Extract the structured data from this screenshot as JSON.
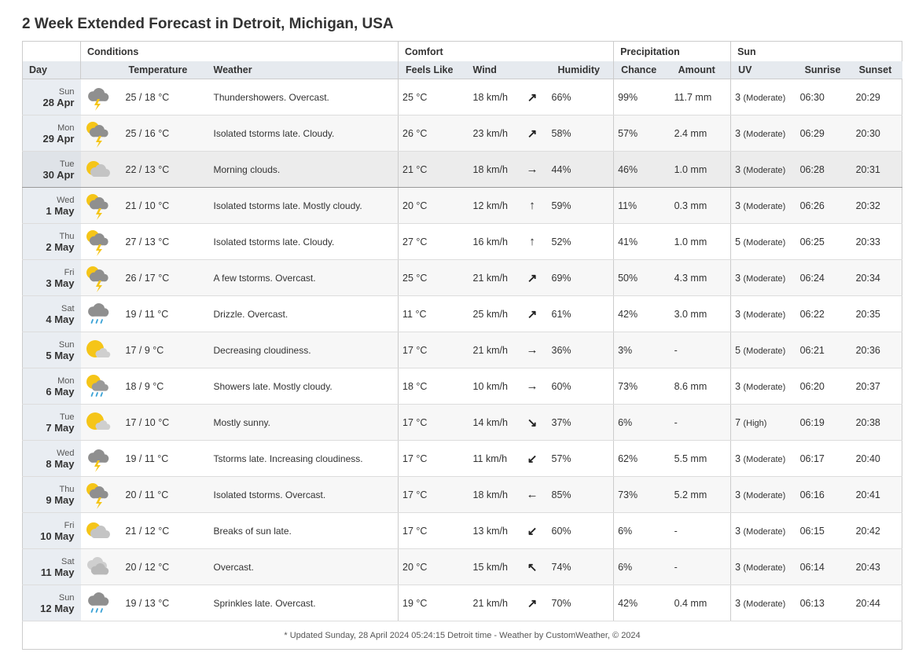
{
  "title": "2 Week Extended Forecast in Detroit, Michigan, USA",
  "groups": {
    "conditions": "Conditions",
    "comfort": "Comfort",
    "precipitation": "Precipitation",
    "sun": "Sun"
  },
  "columns": {
    "day": "Day",
    "temperature": "Temperature",
    "weather": "Weather",
    "feels_like": "Feels Like",
    "wind": "Wind",
    "humidity": "Humidity",
    "chance": "Chance",
    "amount": "Amount",
    "uv": "UV",
    "sunrise": "Sunrise",
    "sunset": "Sunset"
  },
  "rows": [
    {
      "dow": "Sun",
      "date": "28 Apr",
      "icon": "thunderstorm-icon",
      "temp": "25 / 18 °C",
      "weather": "Thundershowers. Overcast.",
      "feels": "25 °C",
      "wind": "18 km/h",
      "wind_dir": "↗",
      "humidity": "66%",
      "chance": "99%",
      "amount": "11.7 mm",
      "uv": "3",
      "uv_label": "(Moderate)",
      "sunrise": "06:30",
      "sunset": "20:29"
    },
    {
      "dow": "Mon",
      "date": "29 Apr",
      "icon": "sun-thunderstorm-icon",
      "temp": "25 / 16 °C",
      "weather": "Isolated tstorms late. Cloudy.",
      "feels": "26 °C",
      "wind": "23 km/h",
      "wind_dir": "↗",
      "humidity": "58%",
      "chance": "57%",
      "amount": "2.4 mm",
      "uv": "3",
      "uv_label": "(Moderate)",
      "sunrise": "06:29",
      "sunset": "20:30"
    },
    {
      "dow": "Tue",
      "date": "30 Apr",
      "icon": "partly-cloudy-icon",
      "temp": "22 / 13 °C",
      "weather": "Morning clouds.",
      "feels": "21 °C",
      "wind": "18 km/h",
      "wind_dir": "→",
      "humidity": "44%",
      "chance": "46%",
      "amount": "1.0 mm",
      "uv": "3",
      "uv_label": "(Moderate)",
      "sunrise": "06:28",
      "sunset": "20:31"
    },
    {
      "dow": "Wed",
      "date": "1 May",
      "icon": "sun-thunderstorm-icon",
      "temp": "21 / 10 °C",
      "weather": "Isolated tstorms late. Mostly cloudy.",
      "feels": "20 °C",
      "wind": "12 km/h",
      "wind_dir": "↑",
      "humidity": "59%",
      "chance": "11%",
      "amount": "0.3 mm",
      "uv": "3",
      "uv_label": "(Moderate)",
      "sunrise": "06:26",
      "sunset": "20:32"
    },
    {
      "dow": "Thu",
      "date": "2 May",
      "icon": "sun-thunderstorm-icon",
      "temp": "27 / 13 °C",
      "weather": "Isolated tstorms late. Cloudy.",
      "feels": "27 °C",
      "wind": "16 km/h",
      "wind_dir": "↑",
      "humidity": "52%",
      "chance": "41%",
      "amount": "1.0 mm",
      "uv": "5",
      "uv_label": "(Moderate)",
      "sunrise": "06:25",
      "sunset": "20:33"
    },
    {
      "dow": "Fri",
      "date": "3 May",
      "icon": "sun-thunderstorm-icon",
      "temp": "26 / 17 °C",
      "weather": "A few tstorms. Overcast.",
      "feels": "25 °C",
      "wind": "21 km/h",
      "wind_dir": "↗",
      "humidity": "69%",
      "chance": "50%",
      "amount": "4.3 mm",
      "uv": "3",
      "uv_label": "(Moderate)",
      "sunrise": "06:24",
      "sunset": "20:34"
    },
    {
      "dow": "Sat",
      "date": "4 May",
      "icon": "drizzle-icon",
      "temp": "19 / 11 °C",
      "weather": "Drizzle. Overcast.",
      "feels": "11 °C",
      "wind": "25 km/h",
      "wind_dir": "↗",
      "humidity": "61%",
      "chance": "42%",
      "amount": "3.0 mm",
      "uv": "3",
      "uv_label": "(Moderate)",
      "sunrise": "06:22",
      "sunset": "20:35"
    },
    {
      "dow": "Sun",
      "date": "5 May",
      "icon": "mostly-sunny-icon",
      "temp": "17 / 9 °C",
      "weather": "Decreasing cloudiness.",
      "feels": "17 °C",
      "wind": "21 km/h",
      "wind_dir": "→",
      "humidity": "36%",
      "chance": "3%",
      "amount": "-",
      "uv": "5",
      "uv_label": "(Moderate)",
      "sunrise": "06:21",
      "sunset": "20:36"
    },
    {
      "dow": "Mon",
      "date": "6 May",
      "icon": "sun-showers-icon",
      "temp": "18 / 9 °C",
      "weather": "Showers late. Mostly cloudy.",
      "feels": "18 °C",
      "wind": "10 km/h",
      "wind_dir": "→",
      "humidity": "60%",
      "chance": "73%",
      "amount": "8.6 mm",
      "uv": "3",
      "uv_label": "(Moderate)",
      "sunrise": "06:20",
      "sunset": "20:37"
    },
    {
      "dow": "Tue",
      "date": "7 May",
      "icon": "mostly-sunny-icon",
      "temp": "17 / 10 °C",
      "weather": "Mostly sunny.",
      "feels": "17 °C",
      "wind": "14 km/h",
      "wind_dir": "↘",
      "humidity": "37%",
      "chance": "6%",
      "amount": "-",
      "uv": "7",
      "uv_label": "(High)",
      "sunrise": "06:19",
      "sunset": "20:38"
    },
    {
      "dow": "Wed",
      "date": "8 May",
      "icon": "thunderstorm-icon",
      "temp": "19 / 11 °C",
      "weather": "Tstorms late. Increasing cloudiness.",
      "feels": "17 °C",
      "wind": "11 km/h",
      "wind_dir": "↙",
      "humidity": "57%",
      "chance": "62%",
      "amount": "5.5 mm",
      "uv": "3",
      "uv_label": "(Moderate)",
      "sunrise": "06:17",
      "sunset": "20:40"
    },
    {
      "dow": "Thu",
      "date": "9 May",
      "icon": "sun-thunderstorm-icon",
      "temp": "20 / 11 °C",
      "weather": "Isolated tstorms. Overcast.",
      "feels": "17 °C",
      "wind": "18 km/h",
      "wind_dir": "←",
      "humidity": "85%",
      "chance": "73%",
      "amount": "5.2 mm",
      "uv": "3",
      "uv_label": "(Moderate)",
      "sunrise": "06:16",
      "sunset": "20:41"
    },
    {
      "dow": "Fri",
      "date": "10 May",
      "icon": "partly-cloudy-icon",
      "temp": "21 / 12 °C",
      "weather": "Breaks of sun late.",
      "feels": "17 °C",
      "wind": "13 km/h",
      "wind_dir": "↙",
      "humidity": "60%",
      "chance": "6%",
      "amount": "-",
      "uv": "3",
      "uv_label": "(Moderate)",
      "sunrise": "06:15",
      "sunset": "20:42"
    },
    {
      "dow": "Sat",
      "date": "11 May",
      "icon": "overcast-icon",
      "temp": "20 / 12 °C",
      "weather": "Overcast.",
      "feels": "20 °C",
      "wind": "15 km/h",
      "wind_dir": "↖",
      "humidity": "74%",
      "chance": "6%",
      "amount": "-",
      "uv": "3",
      "uv_label": "(Moderate)",
      "sunrise": "06:14",
      "sunset": "20:43"
    },
    {
      "dow": "Sun",
      "date": "12 May",
      "icon": "drizzle-icon",
      "temp": "19 / 13 °C",
      "weather": "Sprinkles late. Overcast.",
      "feels": "19 °C",
      "wind": "21 km/h",
      "wind_dir": "↗",
      "humidity": "70%",
      "chance": "42%",
      "amount": "0.4 mm",
      "uv": "3",
      "uv_label": "(Moderate)",
      "sunrise": "06:13",
      "sunset": "20:44"
    }
  ],
  "footer": "* Updated Sunday, 28 April 2024 05:24:15 Detroit time - Weather by CustomWeather, © 2024",
  "colors": {
    "header_bg": "#e6eaef",
    "day_bg": "#e9edf2",
    "border": "#cccccc",
    "sun": "#f5c518",
    "cloud": "#9a9a9a",
    "rain": "#3ba3d6"
  }
}
